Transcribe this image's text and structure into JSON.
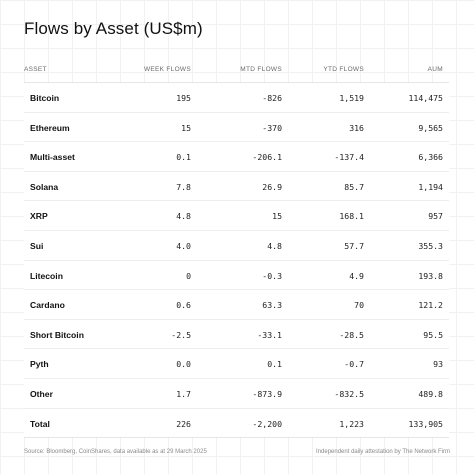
{
  "title": "Flows by Asset (US$m)",
  "columns": [
    "ASSET",
    "WEEK FLOWS",
    "MTD FLOWS",
    "YTD FLOWS",
    "AUM"
  ],
  "rows": [
    [
      "Bitcoin",
      "195",
      "-826",
      "1,519",
      "114,475"
    ],
    [
      "Ethereum",
      "15",
      "-370",
      "316",
      "9,565"
    ],
    [
      "Multi-asset",
      "0.1",
      "-206.1",
      "-137.4",
      "6,366"
    ],
    [
      "Solana",
      "7.8",
      "26.9",
      "85.7",
      "1,194"
    ],
    [
      "XRP",
      "4.8",
      "15",
      "168.1",
      "957"
    ],
    [
      "Sui",
      "4.0",
      "4.8",
      "57.7",
      "355.3"
    ],
    [
      "Litecoin",
      "0",
      "-0.3",
      "4.9",
      "193.8"
    ],
    [
      "Cardano",
      "0.6",
      "63.3",
      "70",
      "121.2"
    ],
    [
      "Short Bitcoin",
      "-2.5",
      "-33.1",
      "-28.5",
      "95.5"
    ],
    [
      "Pyth",
      "0.0",
      "0.1",
      "-0.7",
      "93"
    ],
    [
      "Other",
      "1.7",
      "-873.9",
      "-832.5",
      "489.8"
    ],
    [
      "Total",
      "226",
      "-2,200",
      "1,223",
      "133,905"
    ]
  ],
  "footer": {
    "source": "Source: Bloomberg, CoinShares, data available as at 29 March 2025",
    "attestation": "Independent daily attestation by The Network Firm"
  }
}
